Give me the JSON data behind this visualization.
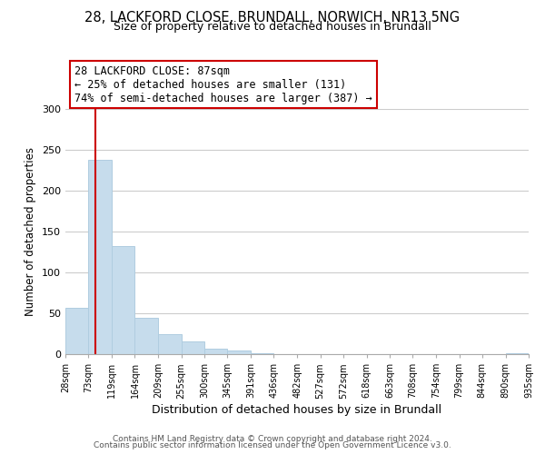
{
  "title1": "28, LACKFORD CLOSE, BRUNDALL, NORWICH, NR13 5NG",
  "title2": "Size of property relative to detached houses in Brundall",
  "xlabel": "Distribution of detached houses by size in Brundall",
  "ylabel": "Number of detached properties",
  "bar_edges": [
    28,
    73,
    119,
    164,
    209,
    255,
    300,
    345,
    391,
    436,
    482,
    527,
    572,
    618,
    663,
    708,
    754,
    799,
    844,
    890,
    935
  ],
  "bar_heights": [
    57,
    238,
    132,
    44,
    24,
    16,
    7,
    5,
    1,
    0,
    0,
    0,
    0,
    0,
    0,
    0,
    0,
    0,
    0,
    1
  ],
  "bar_color": "#c6dcec",
  "bar_edge_color": "#b0cde0",
  "vline_x": 87,
  "vline_color": "#cc0000",
  "annotation_line1": "28 LACKFORD CLOSE: 87sqm",
  "annotation_line2": "← 25% of detached houses are smaller (131)",
  "annotation_line3": "74% of semi-detached houses are larger (387) →",
  "box_edge_color": "#cc0000",
  "ylim": [
    0,
    300
  ],
  "yticks": [
    0,
    50,
    100,
    150,
    200,
    250,
    300
  ],
  "tick_labels": [
    "28sqm",
    "73sqm",
    "119sqm",
    "164sqm",
    "209sqm",
    "255sqm",
    "300sqm",
    "345sqm",
    "391sqm",
    "436sqm",
    "482sqm",
    "527sqm",
    "572sqm",
    "618sqm",
    "663sqm",
    "708sqm",
    "754sqm",
    "799sqm",
    "844sqm",
    "890sqm",
    "935sqm"
  ],
  "footer1": "Contains HM Land Registry data © Crown copyright and database right 2024.",
  "footer2": "Contains public sector information licensed under the Open Government Licence v3.0.",
  "bg_color": "#ffffff",
  "grid_color": "#cccccc",
  "title1_fontsize": 10.5,
  "title2_fontsize": 9,
  "xlabel_fontsize": 9,
  "ylabel_fontsize": 8.5,
  "footer_fontsize": 6.5,
  "tick_fontsize": 7,
  "ytick_fontsize": 8,
  "annot_fontsize": 8.5
}
